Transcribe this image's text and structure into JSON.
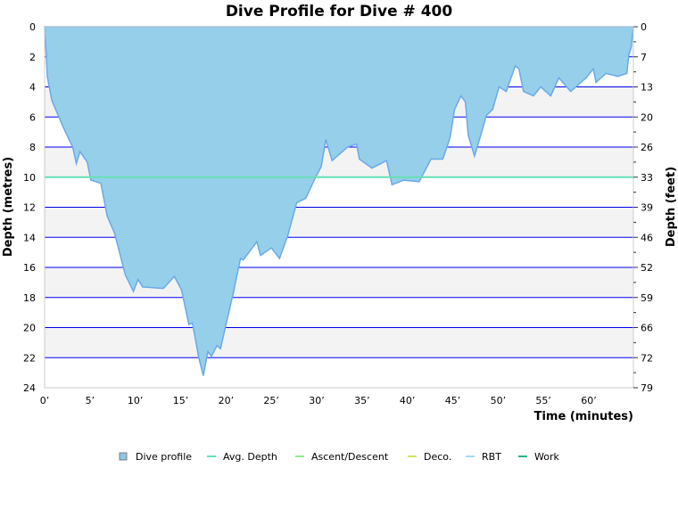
{
  "chart_data": {
    "type": "area",
    "title": "Dive Profile for Dive # 400",
    "xlabel": "Time (minutes)",
    "ylabel": "Depth (metres)",
    "y2label": "Depth (feet)",
    "xlim": [
      0,
      65
    ],
    "ylim": [
      0,
      24
    ],
    "y_inverted": true,
    "grid": true,
    "x_ticks": [
      0,
      5,
      10,
      15,
      20,
      25,
      30,
      35,
      40,
      45,
      50,
      55,
      60
    ],
    "x_tick_labels": [
      "0’",
      "5’",
      "10’",
      "15’",
      "20’",
      "25’",
      "30’",
      "35’",
      "40’",
      "45’",
      "50’",
      "55’",
      "60’"
    ],
    "y_ticks": [
      0,
      2,
      4,
      6,
      8,
      10,
      12,
      14,
      16,
      18,
      20,
      22,
      24
    ],
    "y_tick_labels": [
      "0",
      "2",
      "4",
      "6",
      "8",
      "10",
      "12",
      "14",
      "16",
      "18",
      "20",
      "22",
      "24"
    ],
    "y2_tick_labels": [
      "0",
      "7",
      "13",
      "20",
      "26",
      "33",
      "39",
      "46",
      "52",
      "59",
      "66",
      "72",
      "79"
    ],
    "legend_position": "bottom",
    "legend": [
      {
        "label": "Dive profile",
        "color": "#8fc9e3",
        "marker": "square"
      },
      {
        "label": "Avg. Depth",
        "color": "#66e0b4",
        "marker": "line"
      },
      {
        "label": "Ascent/Descent",
        "color": "#90ee90",
        "marker": "line"
      },
      {
        "label": "Deco.",
        "color": "#d6e26a",
        "marker": "line"
      },
      {
        "label": "RBT",
        "color": "#a3dcf2",
        "marker": "line"
      },
      {
        "label": "Work",
        "color": "#25b585",
        "marker": "line"
      }
    ],
    "avg_depth": 10,
    "colors": {
      "fill": "#96cfe9",
      "stroke": "#6aa9e9",
      "grid": "#0000ee",
      "band": "#f3f3f3"
    },
    "series": [
      {
        "name": "Dive profile",
        "points": [
          [
            0,
            0
          ],
          [
            0.17,
            1.66
          ],
          [
            0.3,
            3.3
          ],
          [
            0.8,
            4.9
          ],
          [
            2.0,
            6.6
          ],
          [
            3.1,
            8.0
          ],
          [
            3.5,
            9.1
          ],
          [
            3.9,
            8.3
          ],
          [
            4.7,
            9.0
          ],
          [
            5.1,
            10.2
          ],
          [
            6.2,
            10.4
          ],
          [
            6.9,
            12.6
          ],
          [
            7.7,
            13.7
          ],
          [
            8.9,
            16.5
          ],
          [
            9.8,
            17.6
          ],
          [
            10.3,
            16.8
          ],
          [
            10.8,
            17.3
          ],
          [
            13.1,
            17.4
          ],
          [
            14.3,
            16.6
          ],
          [
            15.1,
            17.5
          ],
          [
            15.9,
            19.8
          ],
          [
            16.3,
            19.7
          ],
          [
            17.0,
            22.0
          ],
          [
            17.5,
            23.2
          ],
          [
            18.0,
            21.6
          ],
          [
            18.4,
            21.9
          ],
          [
            19.0,
            21.2
          ],
          [
            19.4,
            21.4
          ],
          [
            20.0,
            19.8
          ],
          [
            20.8,
            17.7
          ],
          [
            21.6,
            15.4
          ],
          [
            21.9,
            15.5
          ],
          [
            23.4,
            14.3
          ],
          [
            23.8,
            15.2
          ],
          [
            25.0,
            14.7
          ],
          [
            25.9,
            15.4
          ],
          [
            26.8,
            13.9
          ],
          [
            27.8,
            11.7
          ],
          [
            28.8,
            11.4
          ],
          [
            29.8,
            10.1
          ],
          [
            30.5,
            9.3
          ],
          [
            31.0,
            7.5
          ],
          [
            31.7,
            8.9
          ],
          [
            33.4,
            8.0
          ],
          [
            34.4,
            7.8
          ],
          [
            34.7,
            8.8
          ],
          [
            36.1,
            9.4
          ],
          [
            37.7,
            8.9
          ],
          [
            38.3,
            10.5
          ],
          [
            39.6,
            10.2
          ],
          [
            41.3,
            10.3
          ],
          [
            42.6,
            8.8
          ],
          [
            43.9,
            8.8
          ],
          [
            44.7,
            7.4
          ],
          [
            45.2,
            5.5
          ],
          [
            45.9,
            4.6
          ],
          [
            46.4,
            5.0
          ],
          [
            46.7,
            7.2
          ],
          [
            47.4,
            8.6
          ],
          [
            48.2,
            7.0
          ],
          [
            48.7,
            5.9
          ],
          [
            49.4,
            5.5
          ],
          [
            50.1,
            4.0
          ],
          [
            50.9,
            4.3
          ],
          [
            51.9,
            2.6
          ],
          [
            52.3,
            2.8
          ],
          [
            52.8,
            4.3
          ],
          [
            53.9,
            4.6
          ],
          [
            54.7,
            4.0
          ],
          [
            55.8,
            4.6
          ],
          [
            56.7,
            3.4
          ],
          [
            58.0,
            4.3
          ],
          [
            59.7,
            3.4
          ],
          [
            60.5,
            2.8
          ],
          [
            60.8,
            3.7
          ],
          [
            61.9,
            3.1
          ],
          [
            63.2,
            3.3
          ],
          [
            64.2,
            3.1
          ],
          [
            64.4,
            1.9
          ],
          [
            64.7,
            1.3
          ],
          [
            64.9,
            0
          ]
        ]
      }
    ]
  }
}
